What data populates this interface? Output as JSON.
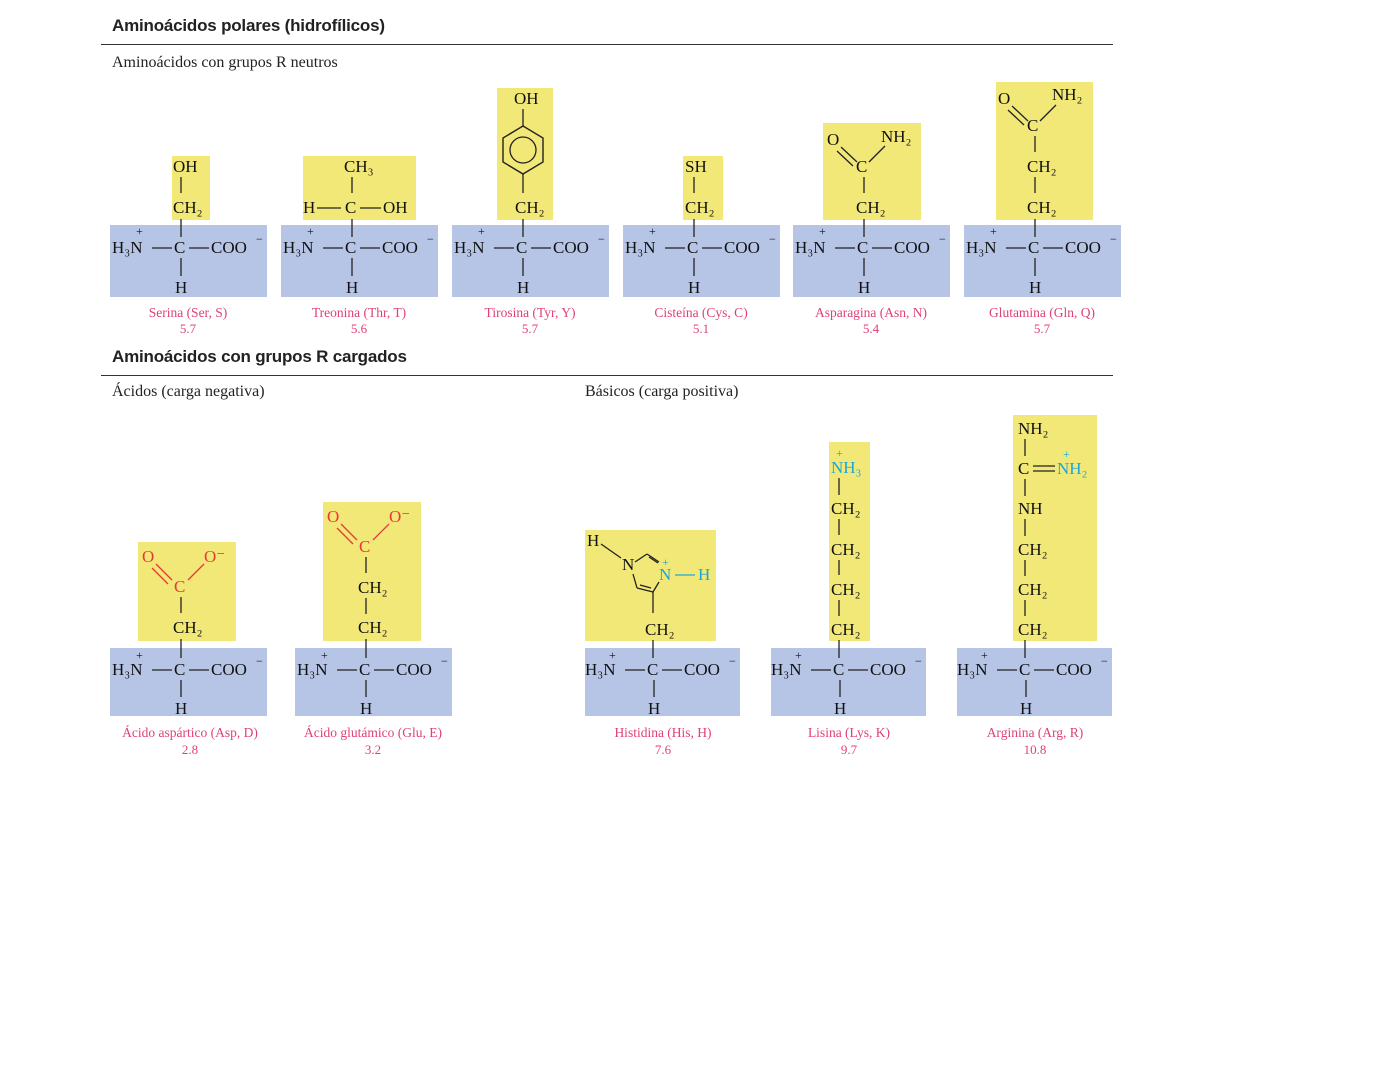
{
  "sections": {
    "polar_title": "Aminoácidos polares (hidrofílicos)",
    "neutral_subtitle": "Aminoácidos con grupos R neutros",
    "charged_title": "Aminoácidos con grupos R cargados",
    "acidic_subtitle": "Ácidos (carga negativa)",
    "basic_subtitle": "Básicos (carga positiva)"
  },
  "colors": {
    "side_chain_bg": "#f2e878",
    "backbone_bg": "#b6c5e6",
    "label": "#e0407a",
    "acid_atom": "#e8393a",
    "basic_atom": "#1aa7d8"
  },
  "backbone": {
    "amine": "H₃N",
    "amine_charge": "+",
    "alpha_c": "C",
    "carboxylate": "COO",
    "carboxylate_charge": "−",
    "alpha_h": "H"
  },
  "neutral": [
    {
      "name": "Serina (Ser, S)",
      "pi": "5.7",
      "atoms": [
        "OH",
        "CH₂"
      ]
    },
    {
      "name": "Treonina (Thr, T)",
      "pi": "5.6",
      "atoms": [
        "CH₃",
        "H",
        "C",
        "OH"
      ]
    },
    {
      "name": "Tirosina (Tyr, Y)",
      "pi": "5.7",
      "atoms": [
        "OH",
        "CH₂"
      ]
    },
    {
      "name": "Cisteína (Cys, C)",
      "pi": "5.1",
      "atoms": [
        "SH",
        "CH₂"
      ]
    },
    {
      "name": "Asparagina (Asn, N)",
      "pi": "5.4",
      "atoms": [
        "O",
        "NH₂",
        "C",
        "CH₂"
      ]
    },
    {
      "name": "Glutamina (Gln, Q)",
      "pi": "5.7",
      "atoms": [
        "O",
        "NH₂",
        "C",
        "CH₂",
        "CH₂"
      ]
    }
  ],
  "acidic": [
    {
      "name": "Ácido aspártico (Asp, D)",
      "pi": "2.8",
      "atoms": [
        "O",
        "O⁻",
        "C",
        "CH₂"
      ]
    },
    {
      "name": "Ácido glutámico (Glu, E)",
      "pi": "3.2",
      "atoms": [
        "O",
        "O⁻",
        "C",
        "CH₂",
        "CH₂"
      ]
    }
  ],
  "basic": [
    {
      "name": "Histidina (His, H)",
      "pi": "7.6",
      "atoms": [
        "H",
        "N",
        "N",
        "+",
        "H",
        "CH₂"
      ]
    },
    {
      "name": "Lisina (Lys, K)",
      "pi": "9.7",
      "atoms": [
        "+",
        "NH₃",
        "CH₂",
        "CH₂",
        "CH₂",
        "CH₂"
      ]
    },
    {
      "name": "Arginina (Arg, R)",
      "pi": "10.8",
      "atoms": [
        "NH₂",
        "C",
        "+",
        "NH₂",
        "NH",
        "CH₂",
        "CH₂",
        "CH₂"
      ]
    }
  ]
}
